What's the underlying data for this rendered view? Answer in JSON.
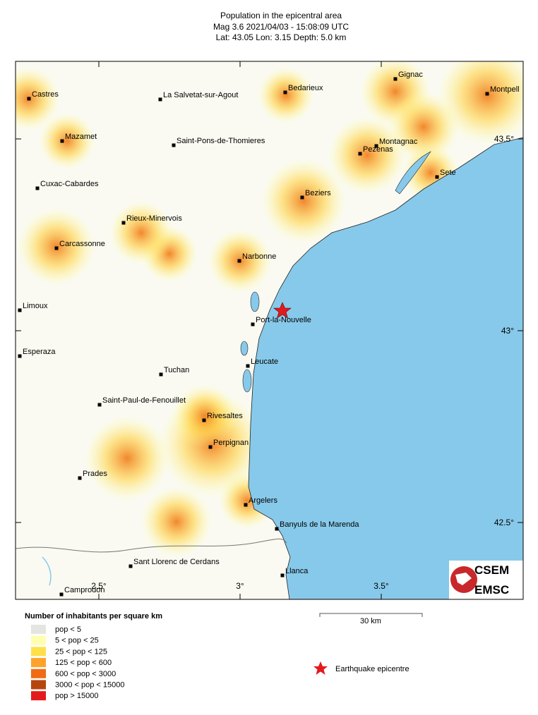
{
  "header": {
    "title": "Population in the epicentral area",
    "line2": "Mag 3.6  2021/04/03 - 15:08:09 UTC",
    "line3": "Lat: 43.05    Lon:  3.15     Depth:  5.0 km"
  },
  "cities": [
    "Castres",
    "La Salvetat-sur-Agout",
    "Bedarieux",
    "Gignac",
    "Montpell",
    "Mazamet",
    "Saint-Pons-de-Thomieres",
    "Montagnac",
    "Pezenas",
    "Sete",
    "Cuxac-Cabardes",
    "Beziers",
    "Rieux-Minervois",
    "Carcassonne",
    "Narbonne",
    "Limoux",
    "Port-la-Nouvelle",
    "Esperaza",
    "Leucate",
    "Tuchan",
    "Saint-Paul-de-Fenouillet",
    "Rivesaltes",
    "Perpignan",
    "Prades",
    "Argelers",
    "Banyuls de la Marenda",
    "Sant Llorenc de Cerdans",
    "Llanca",
    "Camprodon"
  ],
  "graticule": {
    "latitudes": [
      "43.5°",
      "43°",
      "42.5°"
    ],
    "longitudes": [
      "2.5°",
      "3°",
      "3.5°"
    ]
  },
  "scale_bar": "30 km",
  "legend": {
    "title": "Number of inhabitants per square km",
    "items": [
      {
        "label": "pop < 5",
        "color": "#e4e4e0"
      },
      {
        "label": "5 < pop < 25",
        "color": "#ffffb0"
      },
      {
        "label": "25 < pop < 125",
        "color": "#ffe04a"
      },
      {
        "label": "125 < pop < 600",
        "color": "#fda32c"
      },
      {
        "label": "600 < pop < 3000",
        "color": "#f26a14"
      },
      {
        "label": "3000 < pop < 15000",
        "color": "#b6470c"
      },
      {
        "label": "pop > 15000",
        "color": "#e31a1c"
      }
    ],
    "epicentre": "Earthquake epicentre"
  },
  "logo": {
    "top": "CSEM",
    "bottom": "EMSC"
  }
}
